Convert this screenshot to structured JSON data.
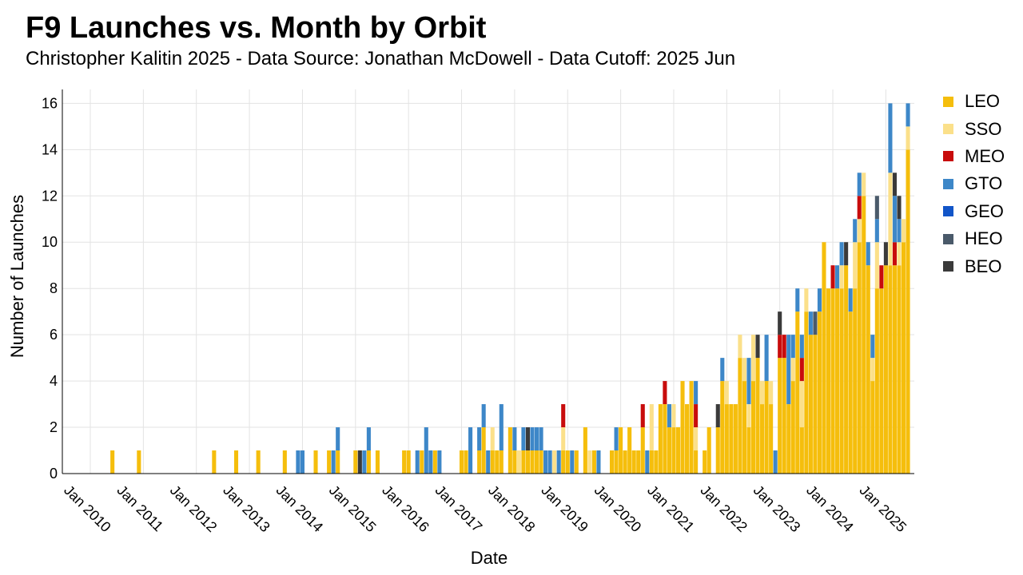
{
  "header": {
    "title": "F9 Launches vs. Month by Orbit",
    "subtitle": "Christopher Kalitin 2025 - Data Source: Jonathan McDowell - Data Cutoff: 2025 Jun"
  },
  "legend_items": [
    {
      "label": "LEO",
      "color": "#f5be0c"
    },
    {
      "label": "SSO",
      "color": "#fbe08a"
    },
    {
      "label": "MEO",
      "color": "#c80c0c"
    },
    {
      "label": "GTO",
      "color": "#3d87c8"
    },
    {
      "label": "GEO",
      "color": "#1255c8"
    },
    {
      "label": "HEO",
      "color": "#4a5a6a"
    },
    {
      "label": "BEO",
      "color": "#3a3a3a"
    }
  ],
  "chart_data": {
    "type": "bar",
    "stacked": true,
    "title": "F9 Launches vs. Month by Orbit",
    "subtitle": "Christopher Kalitin 2025 - Data Source: Jonathan McDowell - Data Cutoff: 2025 Jun",
    "xlabel": "Date",
    "ylabel": "Number of Launches",
    "x_start": "2010-01",
    "x_end": "2025-06",
    "x_ticks": [
      "Jan 2010",
      "Jan 2011",
      "Jan 2012",
      "Jan 2013",
      "Jan 2014",
      "Jan 2015",
      "Jan 2016",
      "Jan 2017",
      "Jan 2018",
      "Jan 2019",
      "Jan 2020",
      "Jan 2021",
      "Jan 2022",
      "Jan 2023",
      "Jan 2024",
      "Jan 2025"
    ],
    "y_ticks": [
      0,
      2,
      4,
      6,
      8,
      10,
      12,
      14,
      16
    ],
    "ylim": [
      0,
      16.6
    ],
    "grid": true,
    "legend_position": "right",
    "series_order": [
      "LEO",
      "SSO",
      "MEO",
      "GTO",
      "GEO",
      "HEO",
      "BEO"
    ],
    "bars": [
      {
        "month": "2010-06",
        "LEO": 1
      },
      {
        "month": "2010-12",
        "LEO": 1
      },
      {
        "month": "2012-05",
        "LEO": 1
      },
      {
        "month": "2012-10",
        "LEO": 1
      },
      {
        "month": "2013-03",
        "LEO": 1
      },
      {
        "month": "2013-09",
        "LEO": 1
      },
      {
        "month": "2013-12",
        "GTO": 1
      },
      {
        "month": "2014-01",
        "GTO": 1
      },
      {
        "month": "2014-04",
        "LEO": 1
      },
      {
        "month": "2014-07",
        "LEO": 1
      },
      {
        "month": "2014-08",
        "GTO": 1
      },
      {
        "month": "2014-09",
        "LEO": 1,
        "GTO": 1
      },
      {
        "month": "2015-01",
        "LEO": 1
      },
      {
        "month": "2015-02",
        "BEO": 1
      },
      {
        "month": "2015-03",
        "GTO": 1
      },
      {
        "month": "2015-04",
        "LEO": 1,
        "GTO": 1
      },
      {
        "month": "2015-06",
        "LEO": 1
      },
      {
        "month": "2015-12",
        "LEO": 1
      },
      {
        "month": "2016-01",
        "LEO": 1
      },
      {
        "month": "2016-03",
        "GTO": 1
      },
      {
        "month": "2016-04",
        "LEO": 1
      },
      {
        "month": "2016-05",
        "GTO": 2
      },
      {
        "month": "2016-06",
        "GTO": 1
      },
      {
        "month": "2016-07",
        "LEO": 1
      },
      {
        "month": "2016-08",
        "GTO": 1
      },
      {
        "month": "2017-01",
        "LEO": 1
      },
      {
        "month": "2017-02",
        "LEO": 1
      },
      {
        "month": "2017-03",
        "GTO": 2
      },
      {
        "month": "2017-05",
        "LEO": 1,
        "GTO": 1
      },
      {
        "month": "2017-06",
        "LEO": 2,
        "GTO": 1
      },
      {
        "month": "2017-07",
        "GTO": 1
      },
      {
        "month": "2017-08",
        "LEO": 1,
        "SSO": 1
      },
      {
        "month": "2017-09",
        "LEO": 1
      },
      {
        "month": "2017-10",
        "LEO": 1,
        "GTO": 2
      },
      {
        "month": "2017-12",
        "LEO": 2
      },
      {
        "month": "2018-01",
        "LEO": 1,
        "GTO": 1
      },
      {
        "month": "2018-02",
        "SSO": 1
      },
      {
        "month": "2018-03",
        "LEO": 1,
        "GTO": 1
      },
      {
        "month": "2018-04",
        "LEO": 1,
        "BEO": 1
      },
      {
        "month": "2018-05",
        "LEO": 1,
        "GTO": 1
      },
      {
        "month": "2018-06",
        "LEO": 1,
        "GTO": 1
      },
      {
        "month": "2018-07",
        "LEO": 1,
        "GTO": 1
      },
      {
        "month": "2018-08",
        "GTO": 1
      },
      {
        "month": "2018-09",
        "GTO": 1
      },
      {
        "month": "2018-10",
        "SSO": 1
      },
      {
        "month": "2018-11",
        "GTO": 1
      },
      {
        "month": "2018-12",
        "LEO": 1,
        "SSO": 1,
        "MEO": 1
      },
      {
        "month": "2019-01",
        "LEO": 1
      },
      {
        "month": "2019-02",
        "GTO": 1
      },
      {
        "month": "2019-03",
        "LEO": 1
      },
      {
        "month": "2019-05",
        "LEO": 2
      },
      {
        "month": "2019-06",
        "SSO": 1
      },
      {
        "month": "2019-07",
        "LEO": 1
      },
      {
        "month": "2019-08",
        "GTO": 1
      },
      {
        "month": "2019-11",
        "LEO": 1
      },
      {
        "month": "2019-12",
        "LEO": 1,
        "GTO": 1
      },
      {
        "month": "2020-01",
        "LEO": 2
      },
      {
        "month": "2020-02",
        "LEO": 1
      },
      {
        "month": "2020-03",
        "LEO": 2
      },
      {
        "month": "2020-04",
        "LEO": 1
      },
      {
        "month": "2020-05",
        "LEO": 1
      },
      {
        "month": "2020-06",
        "LEO": 2,
        "MEO": 1
      },
      {
        "month": "2020-07",
        "GTO": 1
      },
      {
        "month": "2020-08",
        "LEO": 1,
        "SSO": 2
      },
      {
        "month": "2020-09",
        "LEO": 1
      },
      {
        "month": "2020-10",
        "LEO": 3
      },
      {
        "month": "2020-11",
        "LEO": 3,
        "MEO": 1
      },
      {
        "month": "2020-12",
        "LEO": 2,
        "GTO": 1
      },
      {
        "month": "2021-01",
        "LEO": 2,
        "SSO": 1
      },
      {
        "month": "2021-02",
        "LEO": 2
      },
      {
        "month": "2021-03",
        "LEO": 4
      },
      {
        "month": "2021-04",
        "LEO": 3
      },
      {
        "month": "2021-05",
        "LEO": 4
      },
      {
        "month": "2021-06",
        "LEO": 1,
        "SSO": 1,
        "MEO": 1,
        "GTO": 1
      },
      {
        "month": "2021-08",
        "LEO": 1
      },
      {
        "month": "2021-09",
        "LEO": 2
      },
      {
        "month": "2021-11",
        "LEO": 2,
        "BEO": 1
      },
      {
        "month": "2021-12",
        "LEO": 4,
        "GTO": 1
      },
      {
        "month": "2022-01",
        "LEO": 3,
        "SSO": 1
      },
      {
        "month": "2022-02",
        "LEO": 3
      },
      {
        "month": "2022-03",
        "LEO": 3
      },
      {
        "month": "2022-04",
        "LEO": 5,
        "SSO": 1
      },
      {
        "month": "2022-05",
        "LEO": 4,
        "SSO": 1
      },
      {
        "month": "2022-06",
        "LEO": 2,
        "SSO": 1,
        "GTO": 2
      },
      {
        "month": "2022-07",
        "LEO": 4,
        "SSO": 2
      },
      {
        "month": "2022-08",
        "LEO": 5,
        "BEO": 1
      },
      {
        "month": "2022-09",
        "LEO": 3,
        "SSO": 1
      },
      {
        "month": "2022-10",
        "LEO": 4,
        "GTO": 2
      },
      {
        "month": "2022-11",
        "LEO": 3,
        "SSO": 1
      },
      {
        "month": "2022-12",
        "GTO": 1
      },
      {
        "month": "2023-01",
        "LEO": 5,
        "MEO": 1,
        "BEO": 1
      },
      {
        "month": "2023-02",
        "LEO": 5,
        "MEO": 1
      },
      {
        "month": "2023-03",
        "LEO": 3,
        "GTO": 3
      },
      {
        "month": "2023-04",
        "LEO": 4,
        "SSO": 1,
        "GTO": 1
      },
      {
        "month": "2023-05",
        "LEO": 7,
        "GTO": 1
      },
      {
        "month": "2023-06",
        "LEO": 2,
        "SSO": 2,
        "MEO": 1,
        "GTO": 1
      },
      {
        "month": "2023-07",
        "LEO": 7,
        "SSO": 1
      },
      {
        "month": "2023-08",
        "LEO": 6,
        "GTO": 1
      },
      {
        "month": "2023-09",
        "LEO": 6,
        "HEO": 1
      },
      {
        "month": "2023-10",
        "LEO": 7,
        "GTO": 1
      },
      {
        "month": "2023-11",
        "LEO": 10
      },
      {
        "month": "2023-12",
        "LEO": 8
      },
      {
        "month": "2024-01",
        "LEO": 8,
        "MEO": 1
      },
      {
        "month": "2024-02",
        "LEO": 8,
        "GTO": 1
      },
      {
        "month": "2024-03",
        "LEO": 8,
        "SSO": 1,
        "GTO": 1
      },
      {
        "month": "2024-04",
        "LEO": 9,
        "BEO": 1
      },
      {
        "month": "2024-05",
        "LEO": 7,
        "GTO": 1
      },
      {
        "month": "2024-06",
        "LEO": 8,
        "SSO": 2,
        "GTO": 1
      },
      {
        "month": "2024-07",
        "LEO": 10,
        "SSO": 1,
        "GTO": 1,
        "MEO": 1
      },
      {
        "month": "2024-08",
        "LEO": 12,
        "SSO": 1
      },
      {
        "month": "2024-09",
        "LEO": 9,
        "GTO": 1
      },
      {
        "month": "2024-10",
        "LEO": 4,
        "SSO": 1,
        "GTO": 1
      },
      {
        "month": "2024-11",
        "LEO": 8,
        "SSO": 2,
        "GTO": 1,
        "HEO": 1
      },
      {
        "month": "2024-12",
        "LEO": 8,
        "MEO": 1
      },
      {
        "month": "2025-01",
        "LEO": 9,
        "BEO": 1
      },
      {
        "month": "2025-02",
        "LEO": 9,
        "SSO": 4,
        "GTO": 3
      },
      {
        "month": "2025-03",
        "LEO": 9,
        "MEO": 1,
        "GTO": 2,
        "BEO": 1
      },
      {
        "month": "2025-04",
        "LEO": 9,
        "SSO": 1,
        "GTO": 1,
        "BEO": 1
      },
      {
        "month": "2025-05",
        "LEO": 10,
        "SSO": 1
      },
      {
        "month": "2025-06",
        "LEO": 14,
        "SSO": 1,
        "GTO": 1
      }
    ]
  }
}
